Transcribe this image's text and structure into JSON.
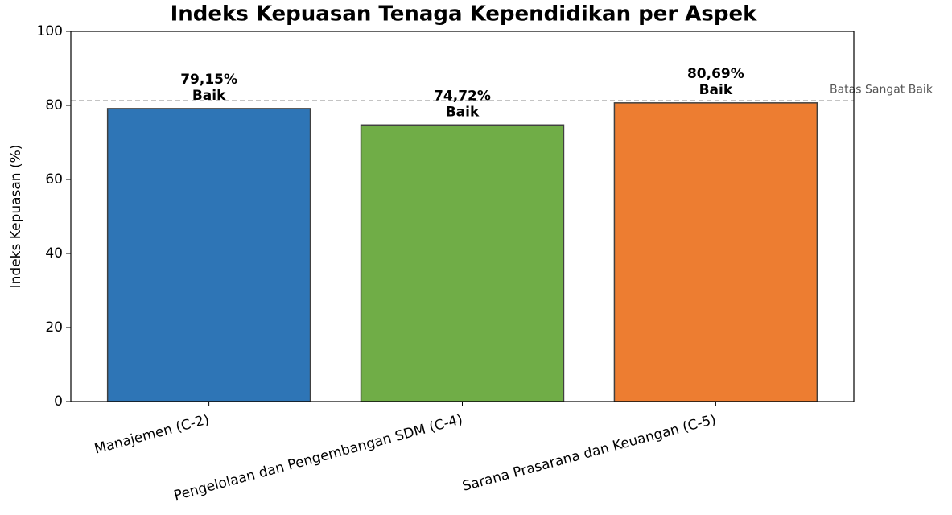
{
  "chart_data": {
    "type": "bar",
    "title": "Indeks Kepuasan Tenaga Kependidikan per Aspek",
    "y_label": "Indeks Kepuasan (%)",
    "categories": [
      "Manajemen (C-2)",
      "Pengelolaan dan Pengembangan SDM (C-4)",
      "Sarana Prasarana dan Keuangan (C-5)"
    ],
    "values": [
      79.15,
      74.72,
      80.69
    ],
    "value_labels": [
      "79,15%",
      "74,72%",
      "80,69%"
    ],
    "status_labels": [
      "Baik",
      "Baik",
      "Baik"
    ],
    "colors": [
      "#2e75b6",
      "#70ad47",
      "#ed7d31"
    ],
    "reference_line": {
      "value": 81.25,
      "label": "Batas Sangat Baik"
    },
    "ylim": [
      0,
      100
    ],
    "yticks": [
      0,
      20,
      40,
      60,
      80,
      100
    ],
    "grid": false
  }
}
